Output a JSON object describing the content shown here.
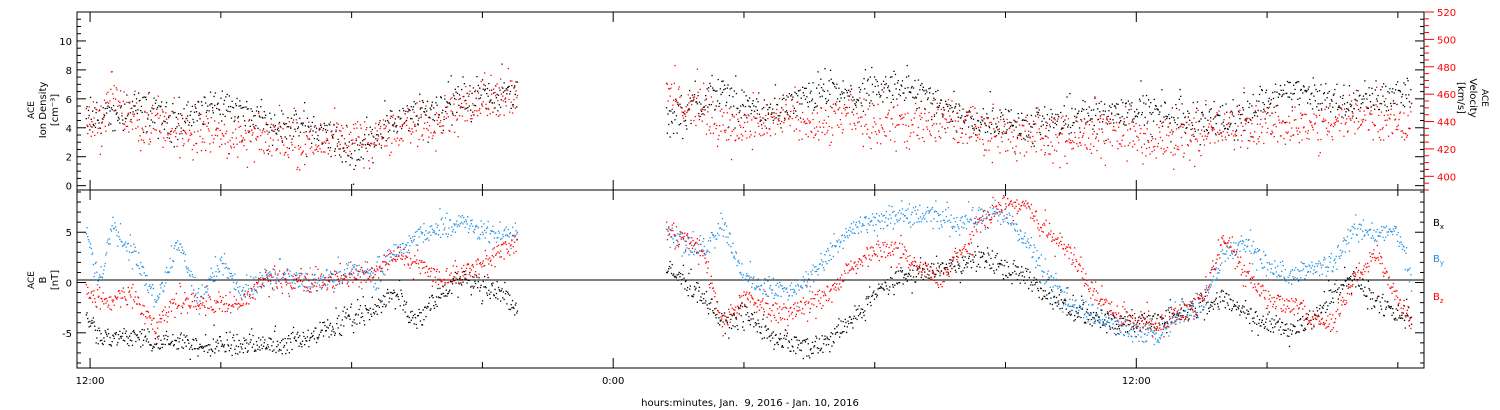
{
  "chart_data": [
    {
      "type": "scatter",
      "panel": "top",
      "ylabel_left": [
        "ACE",
        "Ion Density",
        "[cm⁻³]"
      ],
      "ylabel_right": [
        "ACE",
        "Velocity",
        "[km/s]"
      ],
      "ylim_left": [
        -0.3,
        12
      ],
      "yticks_left": [
        "0",
        "2",
        "4",
        "6",
        "8",
        "10"
      ],
      "ylim_right": [
        390,
        520
      ],
      "yticks_right": [
        "400",
        "420",
        "440",
        "460",
        "480",
        "500",
        "520"
      ],
      "x_range_hours": [
        11.7,
        42.6
      ],
      "data_gap_hours": [
        21.8,
        25.2
      ],
      "series": [
        {
          "axis": "left",
          "color": "#000000",
          "x": [
            11.9,
            12.5,
            13.0,
            13.5,
            14.0,
            14.5,
            15.0,
            15.5,
            16.0,
            16.5,
            17.0,
            17.5,
            18.0,
            18.5,
            19.0,
            19.5,
            20.0,
            20.5,
            21.0,
            21.5,
            21.8,
            25.2,
            25.6,
            26.0,
            26.5,
            27.0,
            27.5,
            28.0,
            28.5,
            29.0,
            29.5,
            30.0,
            30.5,
            31.0,
            31.5,
            32.0,
            32.5,
            33.0,
            33.5,
            34.0,
            34.5,
            35.0,
            35.5,
            36.0,
            36.5,
            37.0,
            37.5,
            38.0,
            38.5,
            39.0,
            39.5,
            40.0,
            40.5,
            41.0,
            41.5,
            42.0,
            42.3
          ],
          "y": [
            4.5,
            4.8,
            5.5,
            5.0,
            4.5,
            5.2,
            5.5,
            5.0,
            4.5,
            4.2,
            4.0,
            3.5,
            2.0,
            3.5,
            4.5,
            5.0,
            5.5,
            6.0,
            6.2,
            6.5,
            6.3,
            4.5,
            5.0,
            6.0,
            6.5,
            5.5,
            5.0,
            5.5,
            6.0,
            6.5,
            6.0,
            6.5,
            7.0,
            6.5,
            5.5,
            5.0,
            4.5,
            4.5,
            4.0,
            4.5,
            4.5,
            5.0,
            5.0,
            5.5,
            5.0,
            4.8,
            4.5,
            4.5,
            5.0,
            6.0,
            6.5,
            6.2,
            6.0,
            5.8,
            6.0,
            6.5,
            6.3
          ]
        },
        {
          "axis": "right",
          "color": "#ff0000",
          "x": [
            11.9,
            12.3,
            12.5,
            12.8,
            13.0,
            13.5,
            14.0,
            14.5,
            15.0,
            15.5,
            16.0,
            16.5,
            17.0,
            17.5,
            18.0,
            18.5,
            19.0,
            19.5,
            20.0,
            20.5,
            21.0,
            21.5,
            21.8,
            25.2,
            25.5,
            26.0,
            26.5,
            27.0,
            27.5,
            28.0,
            28.5,
            29.0,
            29.5,
            30.0,
            30.5,
            31.0,
            31.5,
            32.0,
            32.5,
            33.0,
            33.5,
            34.0,
            34.5,
            35.0,
            35.5,
            36.0,
            36.5,
            37.0,
            37.5,
            38.0,
            38.5,
            39.0,
            39.5,
            40.0,
            40.5,
            41.0,
            41.5,
            42.0,
            42.3
          ],
          "y": [
            443,
            440,
            465,
            445,
            440,
            438,
            436,
            432,
            430,
            428,
            427,
            428,
            426,
            425,
            428,
            430,
            432,
            438,
            445,
            450,
            458,
            460,
            462,
            458,
            455,
            450,
            438,
            435,
            440,
            445,
            438,
            440,
            445,
            440,
            438,
            436,
            440,
            438,
            435,
            430,
            432,
            428,
            430,
            432,
            436,
            428,
            426,
            430,
            432,
            435,
            438,
            438,
            437,
            436,
            440,
            445,
            442,
            440,
            438
          ]
        }
      ]
    },
    {
      "type": "scatter",
      "panel": "bottom",
      "ylabel": [
        "ACE",
        "B",
        "[nT]"
      ],
      "ylim": [
        -8.5,
        9.2
      ],
      "yticks": [
        "-5",
        "0",
        "5"
      ],
      "x_range_hours": [
        11.7,
        42.6
      ],
      "data_gap_hours": [
        21.8,
        25.2
      ],
      "legend": "right",
      "series": [
        {
          "name": "Bx",
          "color": "#000000",
          "x": [
            11.9,
            12.2,
            12.5,
            13.0,
            13.5,
            14.0,
            14.5,
            15.0,
            15.5,
            16.0,
            16.5,
            17.0,
            17.5,
            18.0,
            18.5,
            19.0,
            19.5,
            20.0,
            20.5,
            21.0,
            21.5,
            21.8,
            25.2,
            25.5,
            26.0,
            26.5,
            27.0,
            27.5,
            28.0,
            28.5,
            29.0,
            29.5,
            30.0,
            30.5,
            31.0,
            31.5,
            32.0,
            32.5,
            33.0,
            33.5,
            34.0,
            34.5,
            35.0,
            35.5,
            36.0,
            36.5,
            37.0,
            37.5,
            38.0,
            38.5,
            39.0,
            39.5,
            40.0,
            40.5,
            41.0,
            41.5,
            42.0,
            42.3
          ],
          "y": [
            -3.0,
            -5.0,
            -5.5,
            -5.3,
            -5.8,
            -6.0,
            -6.1,
            -6.0,
            -6.2,
            -6.1,
            -6.0,
            -5.5,
            -4.5,
            -3.5,
            -2.5,
            -1.0,
            -4.0,
            -1.0,
            0.5,
            -0.5,
            -1.0,
            -3.0,
            1.5,
            0.5,
            -1.0,
            -4.0,
            -3.0,
            -5.0,
            -6.0,
            -6.5,
            -5.5,
            -3.5,
            -1.0,
            0.5,
            1.0,
            1.5,
            2.0,
            2.5,
            1.5,
            0.5,
            -1.5,
            -2.5,
            -3.5,
            -4.0,
            -4.2,
            -3.5,
            -3.0,
            -2.0,
            -1.5,
            -3.0,
            -4.0,
            -4.5,
            -4.0,
            -1.0,
            0.5,
            -2.0,
            -3.0,
            -3.5
          ]
        },
        {
          "name": "By",
          "color": "#1f8ee0",
          "x": [
            11.9,
            12.2,
            12.5,
            13.0,
            13.5,
            14.0,
            14.5,
            15.0,
            15.5,
            16.0,
            16.5,
            17.0,
            17.5,
            18.0,
            18.5,
            19.0,
            19.5,
            20.0,
            20.5,
            21.0,
            21.5,
            21.8,
            25.2,
            25.5,
            26.0,
            26.5,
            27.0,
            27.5,
            28.0,
            28.5,
            29.0,
            29.5,
            30.0,
            30.5,
            31.0,
            31.5,
            32.0,
            32.5,
            33.0,
            33.5,
            34.0,
            34.5,
            35.0,
            35.5,
            36.0,
            36.5,
            37.0,
            37.5,
            38.0,
            38.5,
            39.0,
            39.5,
            40.0,
            40.5,
            41.0,
            41.5,
            42.0,
            42.3
          ],
          "y": [
            5.0,
            0.0,
            5.5,
            3.0,
            -2.0,
            4.0,
            -1.5,
            2.0,
            -1.0,
            0.5,
            1.0,
            0.0,
            0.5,
            1.5,
            0.5,
            3.5,
            4.5,
            5.5,
            6.0,
            5.0,
            5.0,
            5.5,
            5.0,
            4.5,
            3.0,
            6.0,
            0.5,
            -0.5,
            -1.0,
            0.5,
            3.0,
            5.5,
            6.0,
            6.5,
            6.8,
            6.5,
            6.0,
            7.0,
            6.5,
            4.0,
            0.0,
            -2.0,
            -3.0,
            -4.0,
            -5.0,
            -5.5,
            -3.0,
            -2.5,
            3.0,
            4.0,
            2.0,
            0.5,
            1.5,
            2.0,
            5.5,
            5.0,
            5.0,
            0.0
          ]
        },
        {
          "name": "Bz",
          "color": "#ff0000",
          "x": [
            11.9,
            12.2,
            12.5,
            13.0,
            13.5,
            14.0,
            14.5,
            15.0,
            15.5,
            16.0,
            16.5,
            17.0,
            17.5,
            18.0,
            18.5,
            19.0,
            19.5,
            20.0,
            20.5,
            21.0,
            21.5,
            21.8,
            25.2,
            25.5,
            26.0,
            26.5,
            27.0,
            27.5,
            28.0,
            28.5,
            29.0,
            29.5,
            30.0,
            30.5,
            31.0,
            31.5,
            32.0,
            32.5,
            33.0,
            33.5,
            34.0,
            34.5,
            35.0,
            35.5,
            36.0,
            36.5,
            37.0,
            37.5,
            38.0,
            38.5,
            39.0,
            39.5,
            40.0,
            40.5,
            41.0,
            41.5,
            42.0,
            42.3
          ],
          "y": [
            -1.0,
            -2.0,
            -1.5,
            -1.0,
            -4.5,
            -1.5,
            -2.0,
            -2.2,
            -2.0,
            0.5,
            0.2,
            0.0,
            0.2,
            0.5,
            1.0,
            3.0,
            2.0,
            0.5,
            1.0,
            2.0,
            3.5,
            4.0,
            5.5,
            4.5,
            3.5,
            -4.0,
            -1.5,
            -2.5,
            -3.0,
            -2.0,
            -1.0,
            2.0,
            3.0,
            3.5,
            1.5,
            0.5,
            3.0,
            6.5,
            8.0,
            7.5,
            5.0,
            3.0,
            -1.0,
            -3.0,
            -3.5,
            -4.0,
            -3.0,
            -2.0,
            4.5,
            1.0,
            -1.5,
            -2.0,
            -3.5,
            -4.0,
            0.5,
            3.0,
            -2.0,
            -4.0
          ]
        }
      ]
    }
  ],
  "legend": {
    "bx": {
      "base": "B",
      "sub": "x",
      "color": "#000000"
    },
    "by": {
      "base": "B",
      "sub": "y",
      "color": "#1f8ee0"
    },
    "bz": {
      "base": "B",
      "sub": "z",
      "color": "#ff0000"
    }
  },
  "x_axis": {
    "ticks": [
      {
        "hours": 12,
        "label": "12:00"
      },
      {
        "hours": 24,
        "label": "0:00"
      },
      {
        "hours": 36,
        "label": "12:00"
      }
    ],
    "xlabel": "hours:minutes, Jan.  9, 2016 - Jan. 10, 2016"
  }
}
